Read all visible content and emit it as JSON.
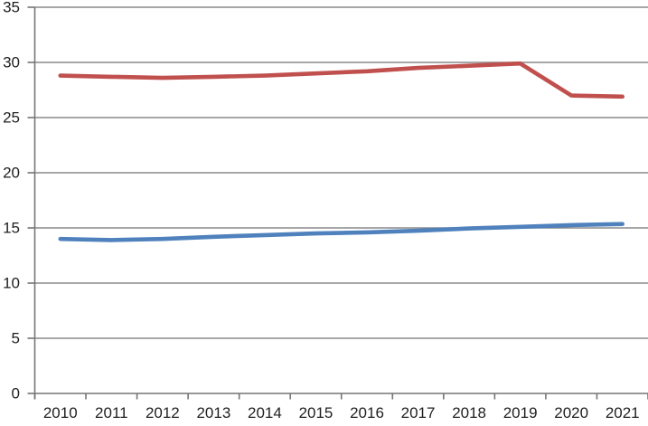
{
  "chart_data": {
    "type": "line",
    "title": "",
    "xlabel": "",
    "ylabel": "",
    "x": [
      "2010",
      "2011",
      "2012",
      "2013",
      "2014",
      "2015",
      "2016",
      "2017",
      "2018",
      "2019",
      "2020",
      "2021"
    ],
    "series": [
      {
        "name": "red-series",
        "color": "#C0504D",
        "values": [
          28.8,
          28.7,
          28.6,
          28.7,
          28.8,
          29.0,
          29.2,
          29.5,
          29.7,
          29.9,
          27.0,
          26.9
        ]
      },
      {
        "name": "blue-series",
        "color": "#4F81BD",
        "values": [
          14.0,
          13.9,
          14.0,
          14.2,
          14.35,
          14.5,
          14.6,
          14.75,
          14.95,
          15.1,
          15.25,
          15.35
        ]
      }
    ],
    "ylim": [
      0,
      35
    ],
    "yticks": [
      0,
      5,
      10,
      15,
      20,
      25,
      30,
      35
    ],
    "grid": true,
    "legend": false,
    "legend_position": "none",
    "background_color": "#FFFFFF",
    "gridline_color": "#8A8A8A",
    "axis_color": "#757575",
    "tick_label_color": "#1F1F1F"
  }
}
